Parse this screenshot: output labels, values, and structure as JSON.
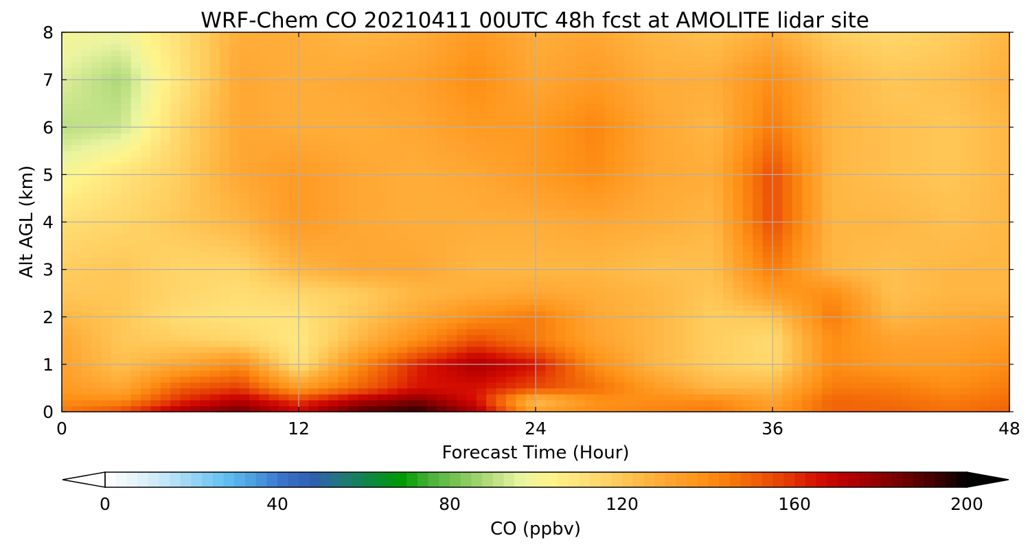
{
  "chart_data": {
    "type": "heatmap",
    "title": "WRF-Chem CO  20210411 00UTC 48h fcst at AMOLITE lidar site",
    "xlabel": "Forecast Time (Hour)",
    "ylabel": "Alt AGL (km)",
    "xlim": [
      0,
      48
    ],
    "ylim": [
      0,
      8
    ],
    "x_ticks": [
      "0",
      "12",
      "24",
      "36",
      "48"
    ],
    "y_ticks": [
      "0",
      "1",
      "2",
      "3",
      "4",
      "5",
      "6",
      "7",
      "8"
    ],
    "grid": true,
    "x_hours": [
      0,
      3,
      6,
      9,
      12,
      15,
      18,
      21,
      24,
      27,
      30,
      33,
      36,
      39,
      42,
      45,
      48
    ],
    "altitudes_km": [
      0,
      0.25,
      0.5,
      1,
      1.5,
      2,
      2.5,
      3,
      4,
      5,
      6,
      7,
      8
    ],
    "values_ppbv": [
      [
        145,
        155,
        175,
        185,
        168,
        190,
        196,
        175,
        132,
        140,
        142,
        145,
        135,
        150,
        150,
        147,
        150
      ],
      [
        140,
        140,
        160,
        172,
        158,
        172,
        182,
        165,
        122,
        138,
        140,
        140,
        132,
        150,
        148,
        145,
        148
      ],
      [
        135,
        130,
        152,
        158,
        135,
        150,
        165,
        165,
        155,
        148,
        135,
        125,
        125,
        145,
        145,
        140,
        145
      ],
      [
        132,
        122,
        130,
        140,
        110,
        140,
        162,
        175,
        165,
        140,
        125,
        118,
        114,
        140,
        135,
        135,
        140
      ],
      [
        130,
        120,
        118,
        115,
        108,
        125,
        140,
        155,
        145,
        132,
        125,
        118,
        113,
        140,
        132,
        132,
        135
      ],
      [
        125,
        120,
        112,
        110,
        110,
        120,
        130,
        140,
        145,
        130,
        125,
        118,
        120,
        145,
        125,
        128,
        130
      ],
      [
        120,
        120,
        115,
        112,
        115,
        118,
        125,
        128,
        130,
        128,
        125,
        120,
        135,
        140,
        122,
        125,
        125
      ],
      [
        118,
        120,
        115,
        115,
        125,
        130,
        130,
        125,
        125,
        125,
        122,
        122,
        145,
        125,
        122,
        125,
        125
      ],
      [
        112,
        115,
        120,
        125,
        135,
        130,
        128,
        128,
        128,
        130,
        128,
        125,
        155,
        125,
        125,
        122,
        125
      ],
      [
        100,
        110,
        118,
        130,
        135,
        130,
        128,
        130,
        135,
        140,
        130,
        128,
        155,
        125,
        122,
        120,
        125
      ],
      [
        90,
        92,
        115,
        130,
        128,
        128,
        130,
        135,
        135,
        142,
        130,
        125,
        145,
        125,
        122,
        120,
        125
      ],
      [
        95,
        88,
        110,
        130,
        128,
        130,
        132,
        140,
        130,
        135,
        128,
        128,
        140,
        125,
        120,
        122,
        128
      ],
      [
        100,
        98,
        112,
        128,
        128,
        125,
        128,
        135,
        128,
        130,
        125,
        122,
        128,
        118,
        115,
        118,
        125
      ]
    ],
    "colorbar": {
      "label": "CO  (ppbv)",
      "min": 0,
      "max": 200,
      "ticks": [
        "0",
        "40",
        "80",
        "120",
        "160",
        "200"
      ],
      "extend": "both",
      "colors": [
        "#ffffff",
        "#e8f4fb",
        "#c4e6f8",
        "#95d3f5",
        "#63c2f2",
        "#4a9fe0",
        "#3a72cc",
        "#2f5fb0",
        "#227878",
        "#0a8a3c",
        "#009c00",
        "#4cb33c",
        "#82c85a",
        "#b8dd80",
        "#eaf4a0",
        "#fff48a",
        "#ffe27a",
        "#ffd062",
        "#ffb946",
        "#ffa430",
        "#ff9419",
        "#f87b0c",
        "#ef5c07",
        "#e43903",
        "#d40d00",
        "#b70000",
        "#920000",
        "#6a0000",
        "#3d0000",
        "#000000"
      ]
    }
  }
}
